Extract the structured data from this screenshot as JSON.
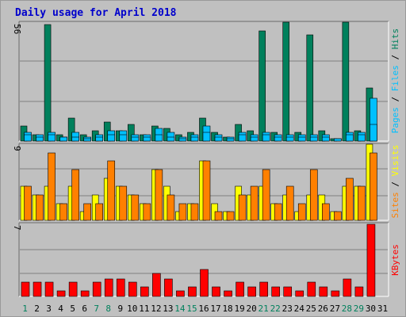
{
  "title": "Daily usage for April 2018",
  "colors": {
    "background": "#c0c0c0",
    "plot_bg": "#c0c0c0",
    "title": "#0000cc",
    "hits": "#00805c",
    "files": "#00c0ff",
    "pages": "#00c0ff",
    "visits": "#ffff00",
    "sites": "#ff8000",
    "kbytes": "#ff0000",
    "weekend_day": "#00805c",
    "weekday_day": "#000000",
    "separator_slash": "#000000"
  },
  "chart_data": [
    {
      "type": "bar",
      "title": "Daily usage for April 2018",
      "panel": "hits-files-pages",
      "categories": [
        "1",
        "2",
        "3",
        "4",
        "5",
        "6",
        "7",
        "8",
        "9",
        "10",
        "11",
        "12",
        "13",
        "14",
        "15",
        "16",
        "17",
        "18",
        "19",
        "20",
        "21",
        "22",
        "23",
        "24",
        "25",
        "26",
        "27",
        "28",
        "29",
        "30",
        "31"
      ],
      "ymax_label": "56",
      "ylim": [
        0,
        56
      ],
      "grid": true,
      "legend_position": "right (vertical)",
      "legend": [
        {
          "text": "Hits",
          "color": "#00805c"
        },
        {
          "text": "Files",
          "color": "#00c0ff"
        },
        {
          "text": "Pages",
          "color": "#00c0ff"
        }
      ],
      "series": [
        {
          "name": "Hits",
          "values": [
            7,
            3,
            55,
            3,
            11,
            3,
            5,
            9,
            5,
            8,
            3,
            7,
            6,
            3,
            4,
            11,
            4,
            2,
            8,
            5,
            52,
            4,
            56,
            4,
            50,
            5,
            1,
            56,
            5,
            25,
            0
          ]
        },
        {
          "name": "Files",
          "values": [
            4,
            3,
            4,
            2,
            4,
            2,
            3,
            5,
            5,
            3,
            3,
            6,
            4,
            2,
            3,
            7,
            3,
            2,
            4,
            3,
            4,
            3,
            3,
            3,
            3,
            3,
            1,
            4,
            4,
            20,
            0
          ]
        },
        {
          "name": "Pages",
          "values": [
            3,
            2,
            3,
            2,
            2,
            1,
            2,
            3,
            3,
            2,
            2,
            3,
            2,
            1,
            2,
            4,
            2,
            1,
            3,
            2,
            3,
            2,
            2,
            2,
            2,
            2,
            1,
            3,
            3,
            8,
            0
          ]
        }
      ]
    },
    {
      "type": "bar",
      "panel": "visits-sites",
      "categories": [
        "1",
        "2",
        "3",
        "4",
        "5",
        "6",
        "7",
        "8",
        "9",
        "10",
        "11",
        "12",
        "13",
        "14",
        "15",
        "16",
        "17",
        "18",
        "19",
        "20",
        "21",
        "22",
        "23",
        "24",
        "25",
        "26",
        "27",
        "28",
        "29",
        "30",
        "31"
      ],
      "ymax_label": "9",
      "ylim": [
        0,
        9
      ],
      "grid": true,
      "legend": [
        {
          "text": "Visits",
          "color": "#ffff00"
        },
        {
          "text": "Sites",
          "color": "#ff8000"
        }
      ],
      "series": [
        {
          "name": "Visits",
          "values": [
            4,
            3,
            4,
            2,
            4,
            1,
            3,
            5,
            4,
            3,
            2,
            6,
            4,
            1,
            2,
            7,
            2,
            1,
            4,
            3,
            4,
            2,
            3,
            1,
            3,
            3,
            1,
            4,
            4,
            9,
            0
          ]
        },
        {
          "name": "Sites",
          "values": [
            4,
            3,
            8,
            2,
            6,
            2,
            2,
            7,
            4,
            3,
            2,
            6,
            3,
            2,
            2,
            7,
            1,
            1,
            3,
            4,
            6,
            2,
            4,
            2,
            6,
            2,
            1,
            5,
            4,
            8,
            0
          ]
        }
      ]
    },
    {
      "type": "bar",
      "panel": "kbytes",
      "categories": [
        "1",
        "2",
        "3",
        "4",
        "5",
        "6",
        "7",
        "8",
        "9",
        "10",
        "11",
        "12",
        "13",
        "14",
        "15",
        "16",
        "17",
        "18",
        "19",
        "20",
        "21",
        "22",
        "23",
        "24",
        "25",
        "26",
        "27",
        "28",
        "29",
        "30",
        "31"
      ],
      "ymax_label": "7",
      "ylim": [
        0,
        7
      ],
      "grid": true,
      "legend": [
        {
          "text": "KBytes",
          "color": "#ff0000"
        }
      ],
      "series": [
        {
          "name": "KBytes",
          "values": [
            1.4,
            1.4,
            1.4,
            0.5,
            1.4,
            0.5,
            1.4,
            1.7,
            1.7,
            1.4,
            0.9,
            2.2,
            1.7,
            0.5,
            0.9,
            2.6,
            0.9,
            0.5,
            1.4,
            0.9,
            1.4,
            0.9,
            0.9,
            0.5,
            1.4,
            0.9,
            0.5,
            1.7,
            0.9,
            6.9,
            0
          ]
        }
      ]
    }
  ],
  "weekend_days": [
    1,
    7,
    8,
    14,
    15,
    21,
    22,
    28,
    29
  ]
}
